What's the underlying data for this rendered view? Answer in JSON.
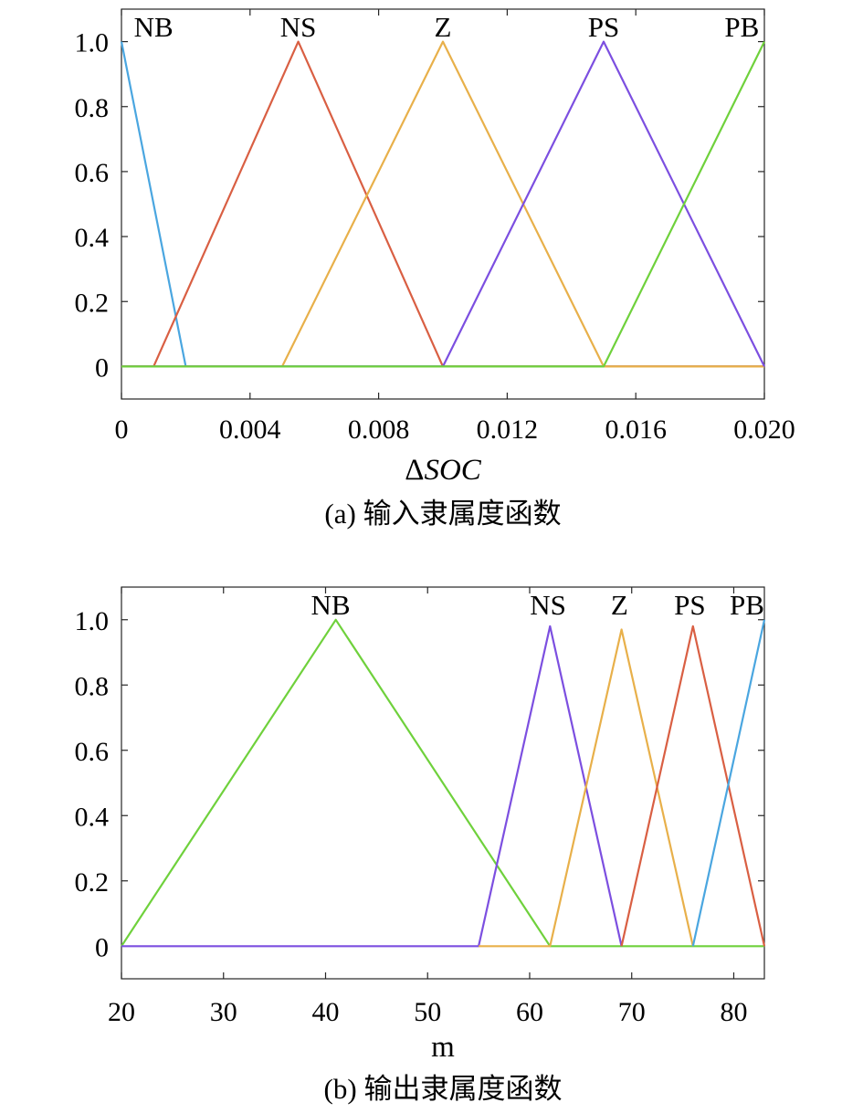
{
  "chart_data": [
    {
      "type": "line",
      "caption": "(a) 输入隶属度函数",
      "xlabel_delta": "Δ",
      "xlabel_italic": "SOC",
      "ylabel": "",
      "xlim": [
        0,
        0.02
      ],
      "ylim": [
        -0.1,
        1.1
      ],
      "xticks": [
        0,
        0.004,
        0.008,
        0.012,
        0.016,
        0.02
      ],
      "xtick_labels": [
        "0",
        "0.004",
        "0.008",
        "0.012",
        "0.016",
        "0.020"
      ],
      "yticks": [
        0,
        0.2,
        0.4,
        0.6,
        0.8,
        1.0
      ],
      "ytick_labels": [
        "0",
        "0.2",
        "0.4",
        "0.6",
        "0.8",
        "1.0"
      ],
      "grid": false,
      "series": [
        {
          "name": "NB",
          "color": "#4aa6e0",
          "x": [
            0,
            0.002,
            0.02
          ],
          "y": [
            1,
            0,
            0
          ],
          "label_x": 0.001
        },
        {
          "name": "NS",
          "color": "#d95f43",
          "x": [
            0,
            0.001,
            0.0055,
            0.01,
            0.02
          ],
          "y": [
            0,
            0,
            1,
            0,
            0
          ],
          "label_x": 0.0055
        },
        {
          "name": "Z",
          "color": "#e8b04a",
          "x": [
            0,
            0.005,
            0.01,
            0.015,
            0.02
          ],
          "y": [
            0,
            0,
            1,
            0,
            0
          ],
          "label_x": 0.01
        },
        {
          "name": "PS",
          "color": "#7c4fe0",
          "x": [
            0,
            0.01,
            0.015,
            0.02
          ],
          "y": [
            0,
            0,
            1,
            0
          ],
          "label_x": 0.015
        },
        {
          "name": "PB",
          "color": "#6fd13c",
          "x": [
            0,
            0.015,
            0.02
          ],
          "y": [
            0,
            0,
            1
          ],
          "label_x": 0.0193
        }
      ]
    },
    {
      "type": "line",
      "caption": "(b) 输出隶属度函数",
      "xlabel": "m",
      "ylabel": "",
      "xlim": [
        20,
        83
      ],
      "ylim": [
        -0.1,
        1.1
      ],
      "xticks": [
        20,
        30,
        40,
        50,
        60,
        70,
        80
      ],
      "xtick_labels": [
        "20",
        "30",
        "40",
        "50",
        "60",
        "70",
        "80"
      ],
      "yticks": [
        0,
        0.2,
        0.4,
        0.6,
        0.8,
        1.0
      ],
      "ytick_labels": [
        "0",
        "0.2",
        "0.4",
        "0.6",
        "0.8",
        "1.0"
      ],
      "grid": false,
      "series": [
        {
          "name": "NB",
          "color": "#6fd13c",
          "x": [
            20,
            41,
            62,
            83
          ],
          "y": [
            0,
            1,
            0,
            0
          ],
          "label_x": 40.5
        },
        {
          "name": "NS",
          "color": "#7c4fe0",
          "x": [
            20,
            55,
            62,
            69
          ],
          "y": [
            0,
            0,
            0.98,
            0
          ],
          "label_x": 61.8
        },
        {
          "name": "Z",
          "color": "#e8b04a",
          "x": [
            55,
            62,
            69,
            76
          ],
          "y": [
            0,
            0,
            0.97,
            0
          ],
          "label_x": 68.8
        },
        {
          "name": "PS",
          "color": "#d95f43",
          "x": [
            69,
            76,
            83
          ],
          "y": [
            0,
            0.98,
            0
          ],
          "label_x": 75.7
        },
        {
          "name": "PB",
          "color": "#4aa6e0",
          "x": [
            76,
            83
          ],
          "y": [
            0,
            1
          ],
          "label_x": 81.3
        }
      ]
    }
  ]
}
